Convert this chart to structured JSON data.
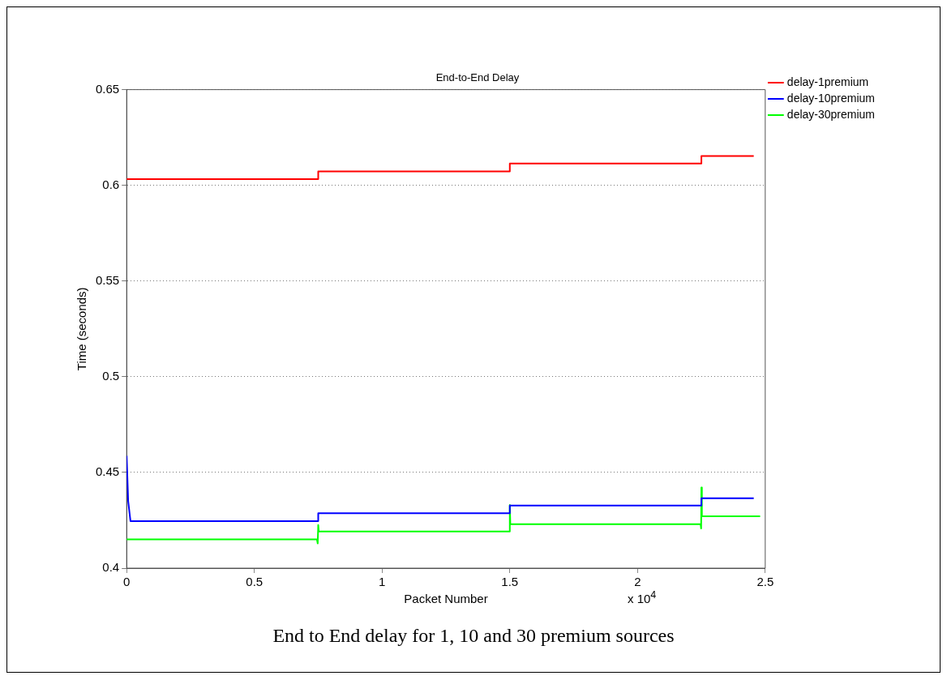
{
  "chart_data": {
    "type": "line",
    "title": "End-to-End Delay",
    "xlabel": "Packet Number",
    "ylabel": "Time (seconds)",
    "xlim": [
      0,
      2.5
    ],
    "xticks": [
      0,
      0.5,
      1,
      1.5,
      2,
      2.5
    ],
    "ylim": [
      0.4,
      0.65
    ],
    "yticks": [
      0.4,
      0.45,
      0.5,
      0.55,
      0.6,
      0.65
    ],
    "grid": "y",
    "legend": "top right",
    "series": [
      {
        "name": "delay-1premium",
        "color": "#ff0000",
        "x": [
          0,
          0.75,
          0.75,
          1.5,
          1.5,
          2.25,
          2.25,
          2.455
        ],
        "values": [
          0.6033,
          0.6033,
          0.6073,
          0.6073,
          0.6114,
          0.6114,
          0.6153,
          0.6153
        ]
      },
      {
        "name": "delay-10premium",
        "color": "#0000ff",
        "x": [
          0,
          0.006,
          0.015,
          0.75,
          0.75,
          1.5,
          1.5,
          2.25,
          2.25,
          2.455
        ],
        "values": [
          0.4587,
          0.435,
          0.4246,
          0.4246,
          0.4287,
          0.4287,
          0.4327,
          0.4327,
          0.4365,
          0.4365
        ]
      },
      {
        "name": "delay-30premium",
        "color": "#00ff00",
        "x": [
          0,
          0.745,
          0.748,
          0.75,
          0.752,
          1.499,
          1.5,
          1.502,
          2.247,
          2.249,
          2.25,
          2.252,
          2.48
        ],
        "values": [
          0.415,
          0.415,
          0.4129,
          0.4225,
          0.4192,
          0.4192,
          0.433,
          0.423,
          0.423,
          0.4207,
          0.4421,
          0.4271,
          0.4271
        ]
      }
    ],
    "annotations": [
      "x 10$^{4}$",
      "End to End delay for 1, 10 and 30 premium sources"
    ]
  }
}
